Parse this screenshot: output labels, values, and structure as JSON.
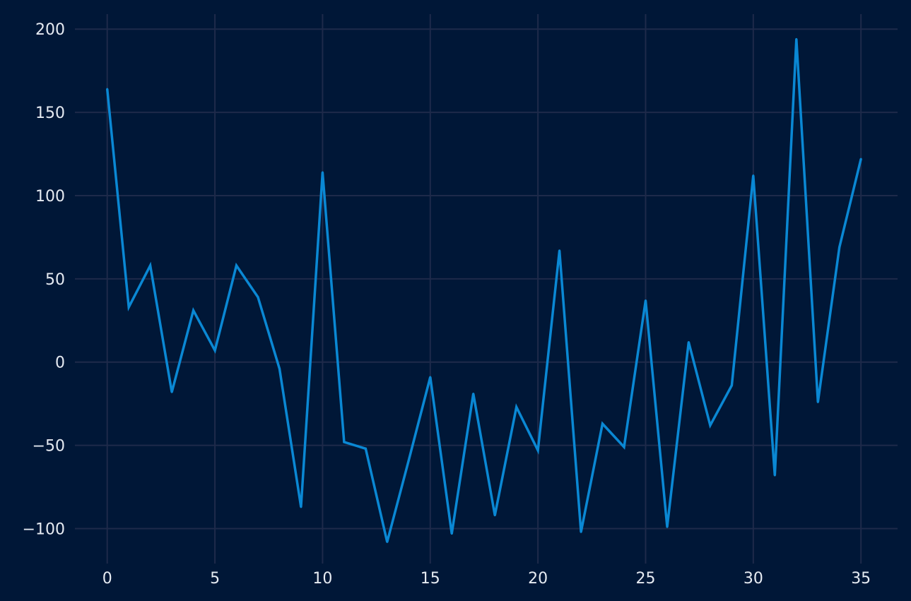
{
  "colors": {
    "background": "#001737",
    "grid": "#1e2a4a",
    "line": "#0a88d4",
    "text": "#e6ebf2"
  },
  "chart_data": {
    "type": "line",
    "title": "",
    "xlabel": "",
    "ylabel": "",
    "xlim": [
      -1.5,
      36.7
    ],
    "ylim": [
      -121,
      209
    ],
    "grid": true,
    "legend": "none",
    "x_ticks": [
      0,
      5,
      10,
      15,
      20,
      25,
      30,
      35
    ],
    "y_ticks": [
      -100,
      -50,
      0,
      50,
      100,
      150,
      200
    ],
    "x_tick_labels": [
      "0",
      "5",
      "10",
      "15",
      "20",
      "25",
      "30",
      "35"
    ],
    "y_tick_labels": [
      "−100",
      "−50",
      "0",
      "50",
      "100",
      "150",
      "200"
    ],
    "series": [
      {
        "x": [
          0,
          1,
          2,
          3,
          4,
          5,
          6,
          7,
          8,
          9,
          10,
          11,
          12,
          13,
          14,
          15,
          16,
          17,
          18,
          19,
          20,
          21,
          22,
          23,
          24,
          25,
          26,
          27,
          28,
          29,
          30,
          31,
          32,
          33,
          34,
          35
        ],
        "values": [
          164,
          33,
          58,
          -18,
          31,
          7,
          58,
          39,
          -4,
          -87,
          114,
          -48,
          -52,
          -108,
          -59,
          -9,
          -103,
          -19,
          -92,
          -27,
          -53,
          67,
          -102,
          -37,
          -51,
          37,
          -99,
          12,
          -38,
          -14,
          112,
          -68,
          194,
          -24,
          69,
          122
        ]
      }
    ]
  }
}
